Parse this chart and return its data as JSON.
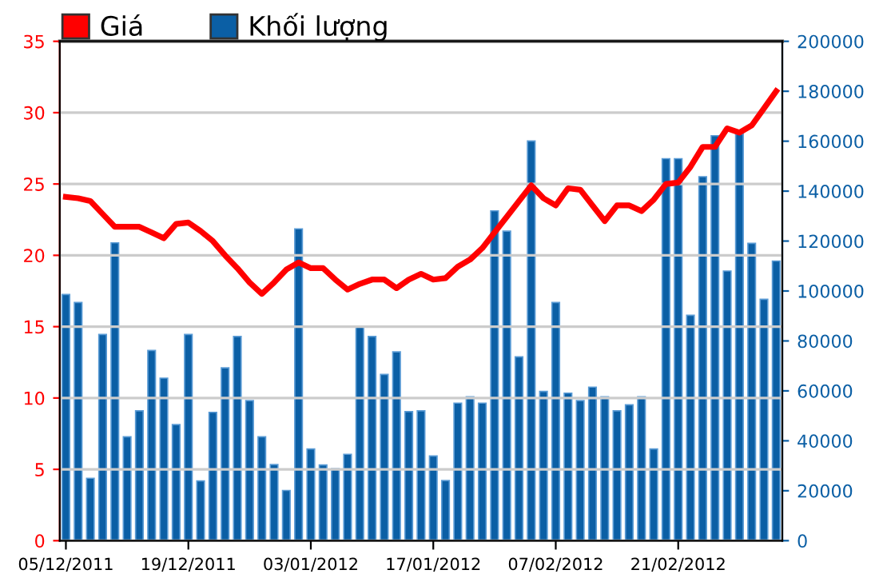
{
  "chart_data": {
    "type": "bar",
    "categories": [
      "05/12/2011",
      null,
      null,
      null,
      null,
      null,
      null,
      null,
      null,
      null,
      "19/12/2011",
      null,
      null,
      null,
      null,
      null,
      null,
      null,
      null,
      null,
      "03/01/2012",
      null,
      null,
      null,
      null,
      null,
      null,
      null,
      null,
      null,
      "17/01/2012",
      null,
      null,
      null,
      null,
      null,
      null,
      null,
      null,
      null,
      "07/02/2012",
      null,
      null,
      null,
      null,
      null,
      null,
      null,
      null,
      null,
      "21/02/2012",
      null,
      null,
      null,
      null,
      null,
      null,
      null,
      null
    ],
    "series": [
      {
        "name": "Khối lượng",
        "axis": "y2",
        "color": "#0b5fa5",
        "values": [
          98600,
          95400,
          25000,
          82600,
          119300,
          41600,
          52000,
          76200,
          65100,
          46500,
          82600,
          23900,
          51400,
          69200,
          81800,
          56100,
          41600,
          30500,
          20100,
          124900,
          36700,
          30300,
          28800,
          34600,
          85800,
          81800,
          66600,
          75600,
          51700,
          52000,
          33900,
          24100,
          55100,
          57600,
          55100,
          132100,
          124000,
          73600,
          160100,
          59800,
          95400,
          59100,
          56100,
          61500,
          57600,
          52000,
          54400,
          57600,
          36700,
          153000,
          153000,
          90300,
          145800,
          162200,
          108000,
          162900,
          119100,
          96700,
          112000
        ]
      },
      {
        "name": "Giá",
        "type": "line",
        "axis": "y",
        "color": "#ff0000",
        "values": [
          24.1,
          24.0,
          23.8,
          22.9,
          22.0,
          22.0,
          22.0,
          21.6,
          21.2,
          22.2,
          22.3,
          21.7,
          21.0,
          20.0,
          19.1,
          18.1,
          17.3,
          18.1,
          19.0,
          19.5,
          19.1,
          19.1,
          18.3,
          17.6,
          18.0,
          18.3,
          18.3,
          17.7,
          18.3,
          18.7,
          18.3,
          18.4,
          19.2,
          19.7,
          20.5,
          21.6,
          22.7,
          23.8,
          24.9,
          24.0,
          23.5,
          24.7,
          24.6,
          23.5,
          22.4,
          23.5,
          23.5,
          23.1,
          23.9,
          25.0,
          25.1,
          26.2,
          27.6,
          27.6,
          28.9,
          28.6,
          29.1,
          30.3,
          31.5
        ]
      }
    ],
    "ylim": [
      0,
      35
    ],
    "yticks": [
      0,
      5,
      10,
      15,
      20,
      25,
      30,
      35
    ],
    "y2lim": [
      0,
      200000
    ],
    "y2ticks": [
      0,
      20000,
      40000,
      60000,
      80000,
      100000,
      120000,
      140000,
      160000,
      180000,
      200000
    ],
    "grid": "y",
    "legend": "top left",
    "marker": "none",
    "line_style": "solid"
  }
}
